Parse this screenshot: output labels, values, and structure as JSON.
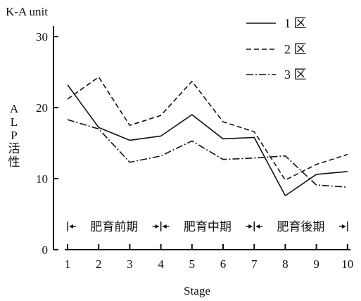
{
  "chart_data": {
    "type": "line",
    "unit_label": "K-A unit",
    "ylabel": "ALP活性",
    "xlabel": "Stage",
    "x": [
      1,
      2,
      3,
      4,
      5,
      6,
      7,
      8,
      9,
      10
    ],
    "ylim": [
      0,
      30
    ],
    "yticks": [
      0,
      10,
      20,
      30
    ],
    "legend_position": "top-right",
    "series": [
      {
        "name": "1 区",
        "dash": "solid",
        "values": [
          23.2,
          17.2,
          15.4,
          16.0,
          19.0,
          15.6,
          15.8,
          7.6,
          10.6,
          11.0
        ]
      },
      {
        "name": "2 区",
        "dash": "dashed",
        "values": [
          21.2,
          24.3,
          17.5,
          18.9,
          23.7,
          18.0,
          16.6,
          9.8,
          12.0,
          13.4
        ]
      },
      {
        "name": "3 区",
        "dash": "dash-dot",
        "values": [
          18.3,
          17.0,
          12.3,
          13.2,
          15.3,
          12.7,
          12.9,
          13.2,
          9.1,
          8.8
        ]
      }
    ],
    "periods": [
      {
        "label": "肥育前期",
        "from": 1,
        "to": 4
      },
      {
        "label": "肥育中期",
        "from": 4,
        "to": 7
      },
      {
        "label": "肥育後期",
        "from": 7,
        "to": 10
      }
    ]
  }
}
